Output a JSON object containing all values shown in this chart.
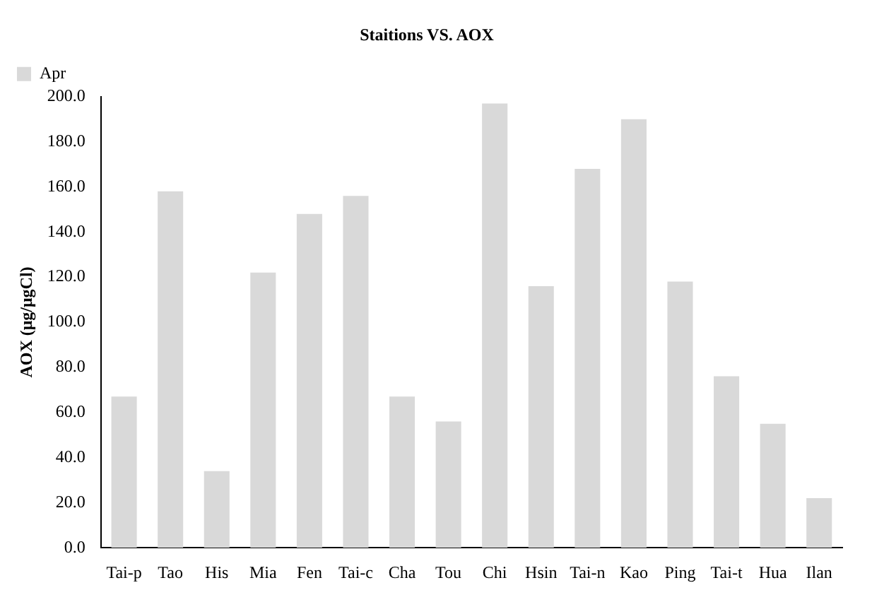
{
  "chart_data": {
    "type": "bar",
    "title": "Staitions VS. AOX",
    "ylabel": "AOX (μg/μgCl)",
    "categories": [
      "Tai-p",
      "Tao",
      "His",
      "Mia",
      "Fen",
      "Tai-c",
      "Cha",
      "Tou",
      "Chi",
      "Hsin",
      "Tai-n",
      "Kao",
      "Ping",
      "Tai-t",
      "Hua",
      "Ilan"
    ],
    "series": [
      {
        "name": "Apr",
        "color": "#d9d9d9",
        "values": [
          67,
          158,
          34,
          122,
          148,
          156,
          67,
          56,
          197,
          116,
          168,
          190,
          118,
          76,
          55,
          22
        ]
      }
    ],
    "ylim": [
      0,
      200
    ],
    "yticks": [
      {
        "value": 0,
        "label": "0.0"
      },
      {
        "value": 20,
        "label": "20.0"
      },
      {
        "value": 40,
        "label": "40.0"
      },
      {
        "value": 60,
        "label": "60.0"
      },
      {
        "value": 80,
        "label": "80.0"
      },
      {
        "value": 100,
        "label": "100.0"
      },
      {
        "value": 120,
        "label": "120.0"
      },
      {
        "value": 140,
        "label": "140.0"
      },
      {
        "value": 160,
        "label": "160.0"
      },
      {
        "value": 180,
        "label": "180.0"
      },
      {
        "value": 200,
        "label": "200.0"
      }
    ],
    "grid": false,
    "legend": "top left"
  }
}
